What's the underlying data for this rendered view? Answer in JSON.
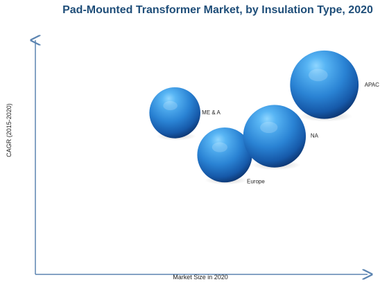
{
  "chart_data": {
    "type": "scatter",
    "title": "Pad-Mounted Transformer Market, by Insulation Type, 2020",
    "xlabel": "Market Size in 2020",
    "ylabel": "CAGR (2015-2020)",
    "series": [
      {
        "name": "ME & A",
        "x": 0.42,
        "y": 0.69,
        "size": 0.7
      },
      {
        "name": "Europe",
        "x": 0.57,
        "y": 0.51,
        "size": 0.9
      },
      {
        "name": "NA",
        "x": 0.72,
        "y": 0.59,
        "size": 1.3
      },
      {
        "name": "APAC",
        "x": 0.87,
        "y": 0.81,
        "size": 1.6
      }
    ],
    "grid": false,
    "legend": "none",
    "xlim": [
      0,
      1
    ],
    "ylim": [
      0,
      1
    ],
    "colors": {
      "title": "#1f4e79",
      "bubble_light": "#6fc2ff",
      "bubble_mid": "#2a83d4",
      "bubble_dark": "#0b2f66",
      "axis": "#5b84b1",
      "text": "#222222"
    }
  }
}
